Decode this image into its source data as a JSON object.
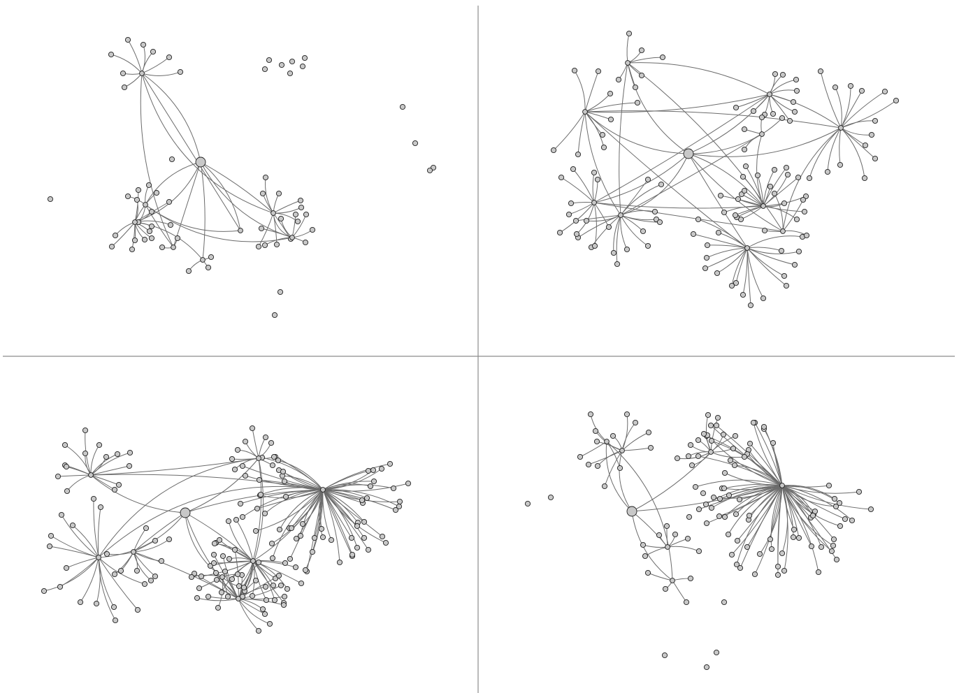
{
  "figure": {
    "kind": "network-layout-comparison",
    "panels": [
      {
        "position": "top-left",
        "hubs": 8,
        "leaves_per_hub": [
          8,
          3,
          14,
          9,
          7,
          0,
          3,
          2
        ],
        "isolated_nodes": 15,
        "has_root": true
      },
      {
        "position": "top-right",
        "hubs": 10,
        "leaves_per_hub": [
          9,
          14,
          11,
          14,
          10,
          6,
          4,
          20,
          18,
          4
        ],
        "isolated_nodes": 0,
        "has_root": true
      },
      {
        "position": "bottom-left",
        "hubs": 8,
        "leaves_per_hub": [
          60,
          9,
          24,
          21,
          10,
          15,
          14,
          6
        ],
        "isolated_nodes": 0,
        "has_root": true
      },
      {
        "position": "bottom-right",
        "hubs": 6,
        "leaves_per_hub": [
          70,
          12,
          10,
          7,
          4,
          3
        ],
        "isolated_nodes": 8,
        "has_root": true
      }
    ],
    "colors": {
      "node_fill": "#c8c8c8",
      "node_stroke": "#1e1e1e",
      "edge": "#6b6b6b",
      "divider": "#8c8c8c"
    }
  }
}
